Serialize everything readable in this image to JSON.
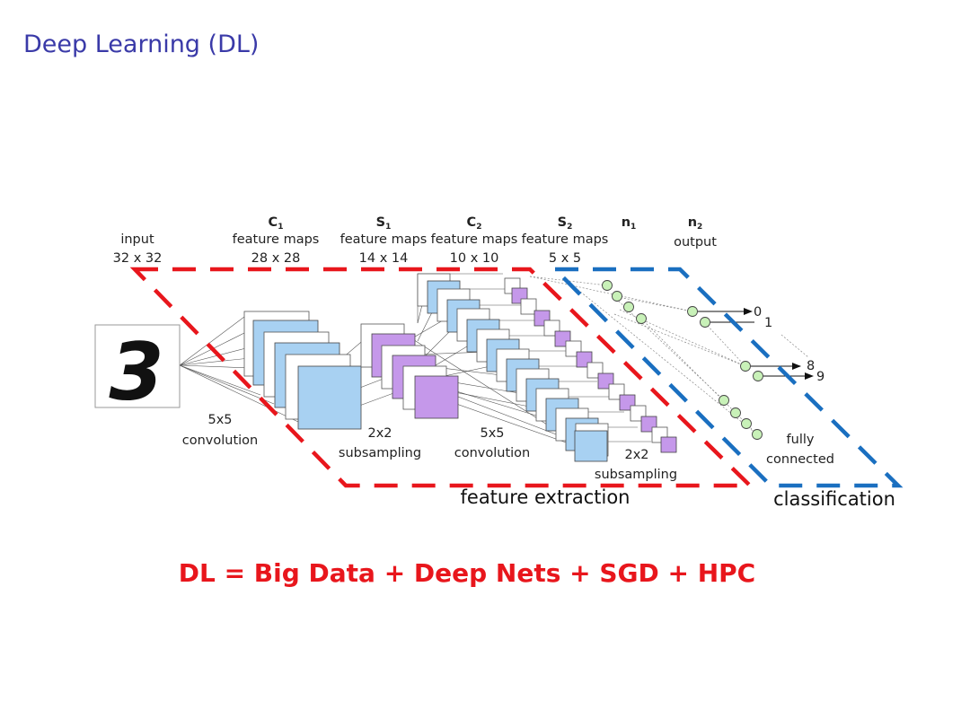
{
  "slide": {
    "title": "Deep Learning (DL)",
    "equation": "DL = Big Data + Deep Nets + SGD + HPC"
  },
  "diagram": {
    "input": {
      "label": "input",
      "size": "32 x 32",
      "digit": "3"
    },
    "layers": [
      {
        "name": "C",
        "sub": "1",
        "desc": "feature maps",
        "size": "28 x 28"
      },
      {
        "name": "S",
        "sub": "1",
        "desc": "feature maps",
        "size": "14 x 14"
      },
      {
        "name": "C",
        "sub": "2",
        "desc": "feature maps",
        "size": "10 x 10"
      },
      {
        "name": "S",
        "sub": "2",
        "desc": "feature maps",
        "size": "5 x 5"
      },
      {
        "name": "n",
        "sub": "1"
      },
      {
        "name": "n",
        "sub": "2",
        "desc": "output"
      }
    ],
    "operations": [
      {
        "size": "5x5",
        "name": "convolution"
      },
      {
        "size": "2x2",
        "name": "subsampling"
      },
      {
        "size": "5x5",
        "name": "convolution"
      },
      {
        "size": "2x2",
        "name": "subsampling"
      },
      {
        "size": "fully",
        "name": "connected"
      }
    ],
    "outputs": [
      "0",
      "1",
      "8",
      "9"
    ],
    "regions": {
      "feature_extraction": "feature extraction",
      "classification": "classification"
    },
    "colors": {
      "feature_extraction_border": "#e8161c",
      "classification_border": "#1a6fc0",
      "conv_maps": "#a8d1f2",
      "pool_maps": "#c598ea",
      "neurons": "#c8f1b8"
    }
  }
}
